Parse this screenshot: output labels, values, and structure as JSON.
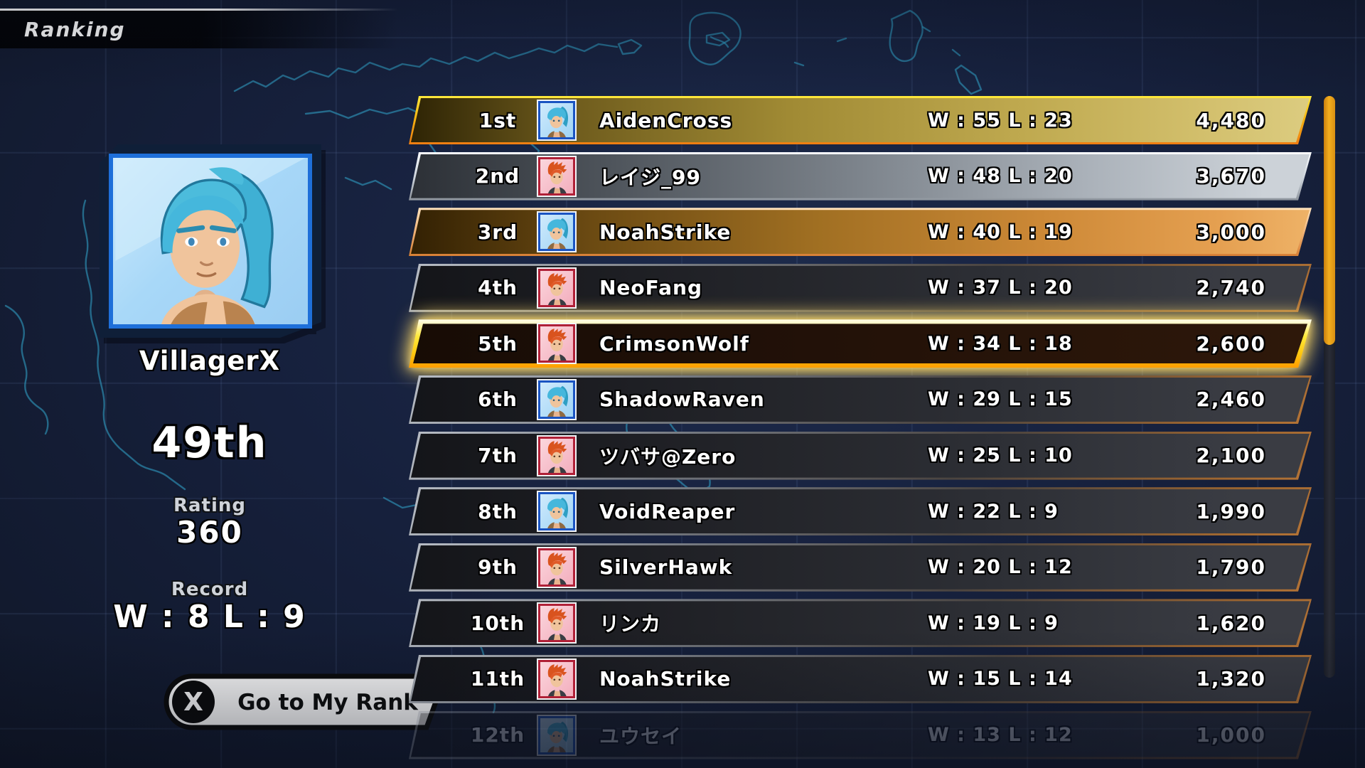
{
  "header": {
    "title": "Ranking"
  },
  "player": {
    "name": "VillagerX",
    "rank": "49th",
    "rating_label": "Rating",
    "rating": "360",
    "record_label": "Record",
    "record": "W : 8  L : 9",
    "avatar": "blue-ponytail-portrait"
  },
  "my_rank_button": {
    "key": "X",
    "label": "Go to My Rank"
  },
  "colors": {
    "gold_row": "#b19b42",
    "silver_row": "#aab1b9",
    "bronze_row": "#cc8836",
    "dark_row": "#2d2f35",
    "highlight_border": "#ffe93c",
    "scroll_thumb": "#f3ae1e",
    "map_line": "#2f97bd",
    "background": "#16203c"
  },
  "leaderboard": {
    "rows": [
      {
        "rank": "1st",
        "name": "AidenCross",
        "wl": "W : 55 L : 23",
        "score": "4,480",
        "style": "gold",
        "avatar": "blue",
        "highlighted": false,
        "faded": false
      },
      {
        "rank": "2nd",
        "name": "レイジ_99",
        "wl": "W : 48 L : 20",
        "score": "3,670",
        "style": "silver",
        "avatar": "red",
        "highlighted": false,
        "faded": false
      },
      {
        "rank": "3rd",
        "name": "NoahStrike",
        "wl": "W : 40 L : 19",
        "score": "3,000",
        "style": "bronze",
        "avatar": "blue",
        "highlighted": false,
        "faded": false
      },
      {
        "rank": "4th",
        "name": "NeoFang",
        "wl": "W : 37 L : 20",
        "score": "2,740",
        "style": "dark",
        "avatar": "red",
        "highlighted": false,
        "faded": false
      },
      {
        "rank": "5th",
        "name": "CrimsonWolf",
        "wl": "W : 34 L : 18",
        "score": "2,600",
        "style": "highlight",
        "avatar": "red",
        "highlighted": true,
        "faded": false
      },
      {
        "rank": "6th",
        "name": "ShadowRaven",
        "wl": "W : 29 L : 15",
        "score": "2,460",
        "style": "dark",
        "avatar": "blue",
        "highlighted": false,
        "faded": false
      },
      {
        "rank": "7th",
        "name": "ツバサ@Zero",
        "wl": "W : 25 L : 10",
        "score": "2,100",
        "style": "dark",
        "avatar": "red",
        "highlighted": false,
        "faded": false
      },
      {
        "rank": "8th",
        "name": "VoidReaper",
        "wl": "W : 22 L : 9",
        "score": "1,990",
        "style": "dark",
        "avatar": "blue",
        "highlighted": false,
        "faded": false
      },
      {
        "rank": "9th",
        "name": "SilverHawk",
        "wl": "W : 20 L : 12",
        "score": "1,790",
        "style": "dark",
        "avatar": "red",
        "highlighted": false,
        "faded": false
      },
      {
        "rank": "10th",
        "name": "リンカ",
        "wl": "W : 19 L : 9",
        "score": "1,620",
        "style": "dark",
        "avatar": "red",
        "highlighted": false,
        "faded": false
      },
      {
        "rank": "11th",
        "name": "NoahStrike",
        "wl": "W : 15 L : 14",
        "score": "1,320",
        "style": "dark",
        "avatar": "red",
        "highlighted": false,
        "faded": false
      },
      {
        "rank": "12th",
        "name": "ユウセイ",
        "wl": "W : 13 L : 12",
        "score": "1,000",
        "style": "dark",
        "avatar": "blue",
        "highlighted": false,
        "faded": true
      }
    ]
  },
  "scrollbar": {
    "thumb_position": "top"
  }
}
